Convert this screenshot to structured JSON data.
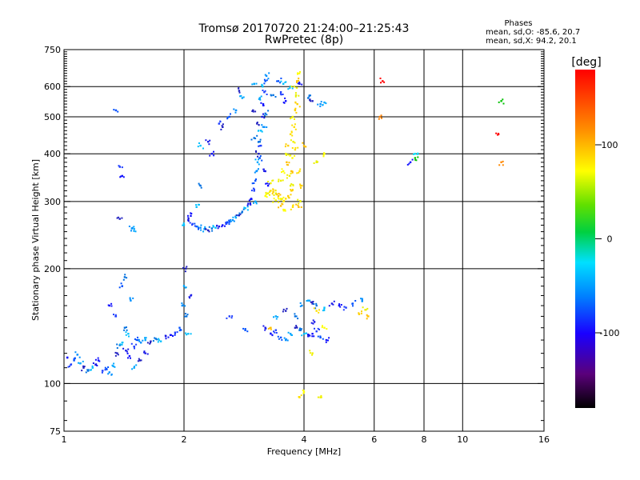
{
  "chart_data": {
    "type": "scatter",
    "title": "Tromsø 20170720 21:24:00–21:25:43",
    "subtitle": "RwPretec (8p)",
    "xlabel": "Frequency [MHz]",
    "ylabel": "Stationary phase Virtual Height [km]",
    "x_scale": "log",
    "y_scale": "log",
    "xlim": [
      1,
      16
    ],
    "ylim": [
      75,
      750
    ],
    "x_ticks": [
      1,
      2,
      4,
      6,
      8,
      10,
      16
    ],
    "x_gridlines": [
      1,
      2,
      4,
      6,
      8,
      10,
      16
    ],
    "y_ticks": [
      75,
      100,
      200,
      300,
      400,
      500,
      600,
      750
    ],
    "y_gridlines": [
      100,
      200,
      300,
      400,
      500,
      600
    ],
    "grid": true,
    "info_title": "Phases",
    "info_lines": [
      "mean, sd,O: -85.6, 20.7",
      "mean, sd,X:  94.2, 20.1"
    ],
    "colorbar": {
      "label": "[deg]",
      "range": [
        -180,
        180
      ],
      "ticks": [
        100,
        0,
        -100
      ],
      "placement": "right"
    },
    "series": [
      {
        "mode": "O",
        "mean_phase": -85.6,
        "points": [
          [
            1.02,
            117
          ],
          [
            1.04,
            112
          ],
          [
            1.06,
            115
          ],
          [
            1.08,
            119
          ],
          [
            1.1,
            113
          ],
          [
            1.12,
            110
          ],
          [
            1.15,
            108
          ],
          [
            1.18,
            110
          ],
          [
            1.2,
            112
          ],
          [
            1.22,
            115
          ],
          [
            1.25,
            108
          ],
          [
            1.28,
            109
          ],
          [
            1.3,
            107
          ],
          [
            1.33,
            111
          ],
          [
            1.36,
            120
          ],
          [
            1.38,
            126
          ],
          [
            1.4,
            128
          ],
          [
            1.43,
            122
          ],
          [
            1.46,
            118
          ],
          [
            1.5,
            125
          ],
          [
            1.53,
            130
          ],
          [
            1.56,
            128
          ],
          [
            1.6,
            130
          ],
          [
            1.65,
            129
          ],
          [
            1.7,
            131
          ],
          [
            1.75,
            129
          ],
          [
            1.8,
            133
          ],
          [
            1.85,
            134
          ],
          [
            1.9,
            136
          ],
          [
            1.95,
            140
          ],
          [
            1.98,
            160
          ],
          [
            2.0,
            180
          ],
          [
            2.02,
            200
          ],
          [
            2.03,
            150
          ],
          [
            2.05,
            135
          ],
          [
            2.08,
            170
          ],
          [
            1.3,
            160
          ],
          [
            1.35,
            150
          ],
          [
            1.4,
            180
          ],
          [
            1.47,
            165
          ],
          [
            1.5,
            110
          ],
          [
            1.55,
            115
          ],
          [
            1.42,
            140
          ],
          [
            1.45,
            135
          ],
          [
            1.6,
            120
          ],
          [
            1.4,
            350
          ],
          [
            1.38,
            370
          ],
          [
            1.35,
            520
          ],
          [
            1.48,
            255
          ],
          [
            1.5,
            254
          ],
          [
            1.38,
            270
          ],
          [
            1.42,
            190
          ],
          [
            2.0,
            260
          ],
          [
            2.05,
            268
          ],
          [
            2.08,
            275
          ],
          [
            2.1,
            262
          ],
          [
            2.15,
            258
          ],
          [
            2.2,
            256
          ],
          [
            2.25,
            254
          ],
          [
            2.3,
            252
          ],
          [
            2.35,
            255
          ],
          [
            2.4,
            256
          ],
          [
            2.45,
            258
          ],
          [
            2.5,
            260
          ],
          [
            2.55,
            262
          ],
          [
            2.6,
            265
          ],
          [
            2.65,
            268
          ],
          [
            2.7,
            272
          ],
          [
            2.75,
            276
          ],
          [
            2.8,
            282
          ],
          [
            2.85,
            288
          ],
          [
            2.9,
            296
          ],
          [
            2.95,
            305
          ],
          [
            3.0,
            320
          ],
          [
            3.02,
            340
          ],
          [
            3.04,
            360
          ],
          [
            3.06,
            380
          ],
          [
            3.08,
            400
          ],
          [
            3.1,
            430
          ],
          [
            3.12,
            460
          ],
          [
            3.14,
            500
          ],
          [
            3.16,
            540
          ],
          [
            3.18,
            580
          ],
          [
            3.2,
            620
          ],
          [
            3.22,
            640
          ],
          [
            3.1,
            560
          ],
          [
            3.05,
            480
          ],
          [
            3.0,
            440
          ],
          [
            3.15,
            600
          ],
          [
            3.2,
            360
          ],
          [
            3.25,
            330
          ],
          [
            3.12,
            420
          ],
          [
            3.1,
            390
          ],
          [
            3.18,
            470
          ],
          [
            3.02,
            300
          ],
          [
            2.98,
            520
          ],
          [
            3.2,
            510
          ],
          [
            2.2,
            420
          ],
          [
            2.3,
            430
          ],
          [
            2.35,
            400
          ],
          [
            2.45,
            480
          ],
          [
            2.6,
            500
          ],
          [
            2.7,
            520
          ],
          [
            2.8,
            560
          ],
          [
            2.5,
            470
          ],
          [
            2.2,
            330
          ],
          [
            2.15,
            290
          ],
          [
            3.2,
            140
          ],
          [
            3.3,
            135
          ],
          [
            3.4,
            138
          ],
          [
            3.5,
            132
          ],
          [
            3.6,
            130
          ],
          [
            3.7,
            135
          ],
          [
            3.8,
            140
          ],
          [
            3.9,
            138
          ],
          [
            4.0,
            135
          ],
          [
            4.1,
            133
          ],
          [
            4.2,
            135
          ],
          [
            4.3,
            137
          ],
          [
            4.4,
            132
          ],
          [
            3.95,
            160
          ],
          [
            4.1,
            165
          ],
          [
            4.2,
            162
          ],
          [
            4.3,
            160
          ],
          [
            4.5,
            158
          ],
          [
            4.7,
            162
          ],
          [
            4.9,
            160
          ],
          [
            5.1,
            158
          ],
          [
            5.3,
            162
          ],
          [
            5.6,
            165
          ],
          [
            3.4,
            150
          ],
          [
            3.6,
            155
          ],
          [
            3.8,
            150
          ],
          [
            3.7,
            600
          ],
          [
            3.9,
            610
          ],
          [
            3.6,
            550
          ],
          [
            3.5,
            580
          ],
          [
            3.45,
            620
          ],
          [
            4.4,
            540
          ],
          [
            4.5,
            545
          ],
          [
            4.2,
            550
          ],
          [
            4.1,
            560
          ],
          [
            7.6,
            390
          ],
          [
            7.6,
            400
          ],
          [
            7.4,
            380
          ],
          [
            6.3,
            620
          ],
          [
            6.2,
            500
          ],
          [
            12.5,
            550
          ],
          [
            3.0,
            610
          ],
          [
            2.75,
            585
          ],
          [
            3.35,
            570
          ],
          [
            3.55,
            610
          ],
          [
            4.25,
            145
          ],
          [
            4.55,
            130
          ],
          [
            2.6,
            150
          ],
          [
            2.85,
            138
          ]
        ]
      },
      {
        "mode": "X",
        "mean_phase": 94.2,
        "points": [
          [
            3.2,
            310
          ],
          [
            3.25,
            315
          ],
          [
            3.3,
            320
          ],
          [
            3.35,
            318
          ],
          [
            3.4,
            315
          ],
          [
            3.45,
            310
          ],
          [
            3.5,
            305
          ],
          [
            3.55,
            300
          ],
          [
            3.6,
            305
          ],
          [
            3.65,
            310
          ],
          [
            3.7,
            330
          ],
          [
            3.72,
            360
          ],
          [
            3.74,
            390
          ],
          [
            3.76,
            430
          ],
          [
            3.78,
            470
          ],
          [
            3.8,
            520
          ],
          [
            3.82,
            570
          ],
          [
            3.84,
            620
          ],
          [
            3.86,
            650
          ],
          [
            3.75,
            500
          ],
          [
            3.7,
            450
          ],
          [
            3.65,
            420
          ],
          [
            3.6,
            400
          ],
          [
            3.62,
            380
          ],
          [
            3.55,
            360
          ],
          [
            3.5,
            340
          ],
          [
            3.9,
            360
          ],
          [
            3.95,
            330
          ],
          [
            3.92,
            300
          ],
          [
            3.88,
            290
          ],
          [
            3.58,
            285
          ],
          [
            3.68,
            350
          ],
          [
            3.8,
            410
          ],
          [
            3.85,
            540
          ],
          [
            3.78,
            600
          ],
          [
            3.5,
            292
          ],
          [
            3.4,
            302
          ],
          [
            3.3,
            335
          ],
          [
            3.75,
            290
          ],
          [
            3.72,
            320
          ],
          [
            4.3,
            380
          ],
          [
            4.0,
            420
          ],
          [
            4.5,
            400
          ],
          [
            4.2,
            120
          ],
          [
            4.3,
            155
          ],
          [
            5.5,
            152
          ],
          [
            5.7,
            156
          ],
          [
            5.8,
            150
          ],
          [
            4.0,
            95
          ],
          [
            4.4,
            92
          ],
          [
            3.9,
            92
          ],
          [
            12.5,
            380
          ],
          [
            12.3,
            450
          ],
          [
            3.3,
            140
          ],
          [
            4.5,
            140
          ]
        ]
      }
    ]
  }
}
